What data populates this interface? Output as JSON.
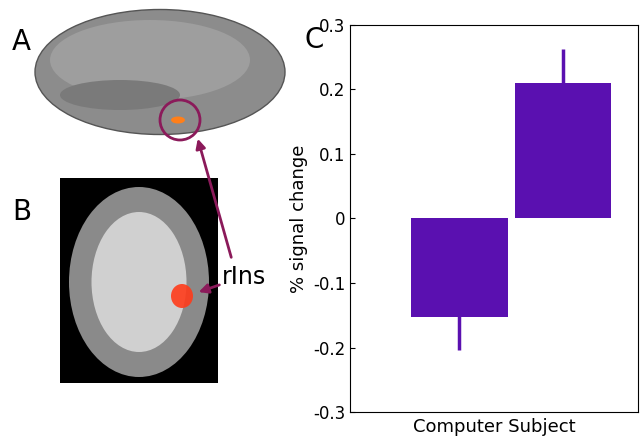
{
  "panel_labels": [
    "A",
    "B",
    "C"
  ],
  "annotation": "rIns",
  "chart_data": {
    "type": "bar",
    "categories": [
      null,
      null
    ],
    "values": [
      -0.152,
      0.21
    ],
    "errors": [
      0.052,
      0.052
    ],
    "color": "#5a10b0",
    "x_label": "Computer Subject",
    "y_label": "% signal change",
    "ylim": [
      -0.3,
      0.3
    ],
    "yticks": [
      -0.3,
      -0.2,
      -0.1,
      0,
      0.1,
      0.2,
      0.3
    ],
    "grid": false
  }
}
